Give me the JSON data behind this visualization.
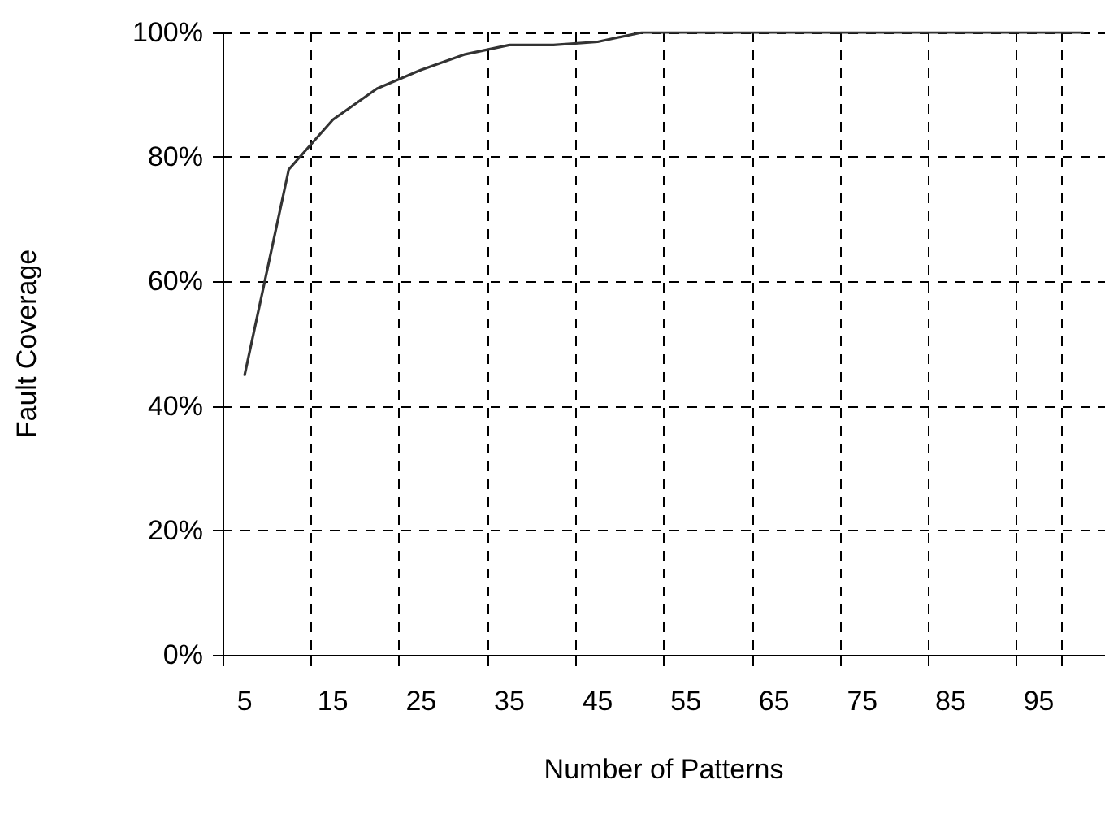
{
  "chart_data": {
    "type": "line",
    "xlabel": "Number of Patterns",
    "ylabel": "Fault Coverage",
    "categories": [
      "5",
      null,
      "15",
      null,
      "25",
      null,
      "35",
      null,
      "45",
      null,
      "55",
      null,
      "65",
      null,
      "75",
      null,
      "85",
      null,
      "95",
      null
    ],
    "series": [
      {
        "color": "#333333",
        "values": [
          45,
          78,
          86,
          91,
          94,
          96.5,
          98,
          98,
          98.5,
          100,
          100,
          100,
          100,
          100,
          100,
          100,
          100,
          100,
          100,
          100
        ]
      }
    ],
    "ylim": [
      0,
      100
    ],
    "yticks": [
      {
        "value": 0,
        "label": "0%"
      },
      {
        "value": 20,
        "label": "20%"
      },
      {
        "value": 40,
        "label": "40%"
      },
      {
        "value": 60,
        "label": "60%"
      },
      {
        "value": 80,
        "label": "80%"
      },
      {
        "value": 100,
        "label": "100%"
      }
    ],
    "grid": true,
    "marker": "none",
    "line_style": "solid"
  }
}
